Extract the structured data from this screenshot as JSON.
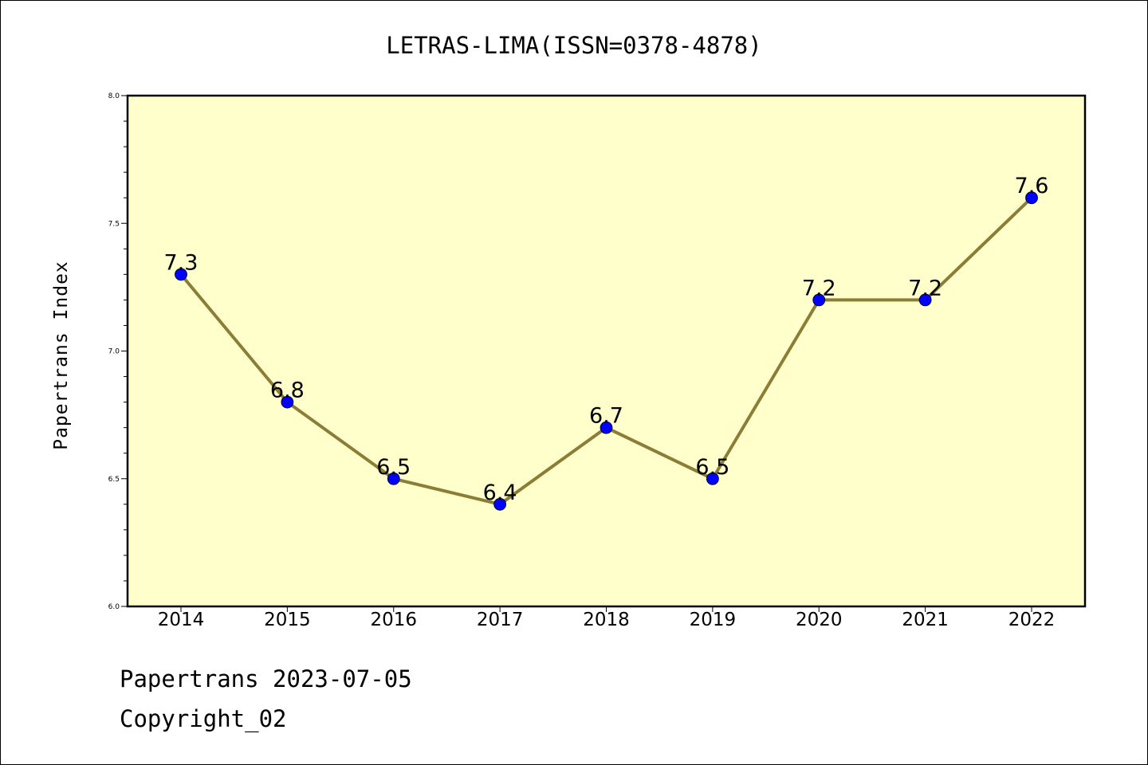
{
  "chart_data": {
    "type": "line",
    "title": "LETRAS-LIMA(ISSN=0378-4878)",
    "xlabel": "",
    "ylabel": "Papertrans Index",
    "categories": [
      "2014",
      "2015",
      "2016",
      "2017",
      "2018",
      "2019",
      "2020",
      "2021",
      "2022"
    ],
    "values": [
      7.3,
      6.8,
      6.5,
      6.4,
      6.7,
      6.5,
      7.2,
      7.2,
      7.6
    ],
    "data_labels": [
      "7.3",
      "6.8",
      "6.5",
      "6.4",
      "6.7",
      "6.5",
      "7.2",
      "7.2",
      "7.6"
    ],
    "ylim": [
      6.0,
      8.0
    ],
    "yticks": [
      "6.0",
      "6.5",
      "7.0",
      "7.5",
      "8.0"
    ],
    "grid": false,
    "colors": {
      "plot_background": "#ffffcc",
      "line": "#8b7d35",
      "marker": "#0000ff"
    }
  },
  "footer": {
    "line1": "Papertrans 2023-07-05",
    "line2": "Copyright_02"
  }
}
